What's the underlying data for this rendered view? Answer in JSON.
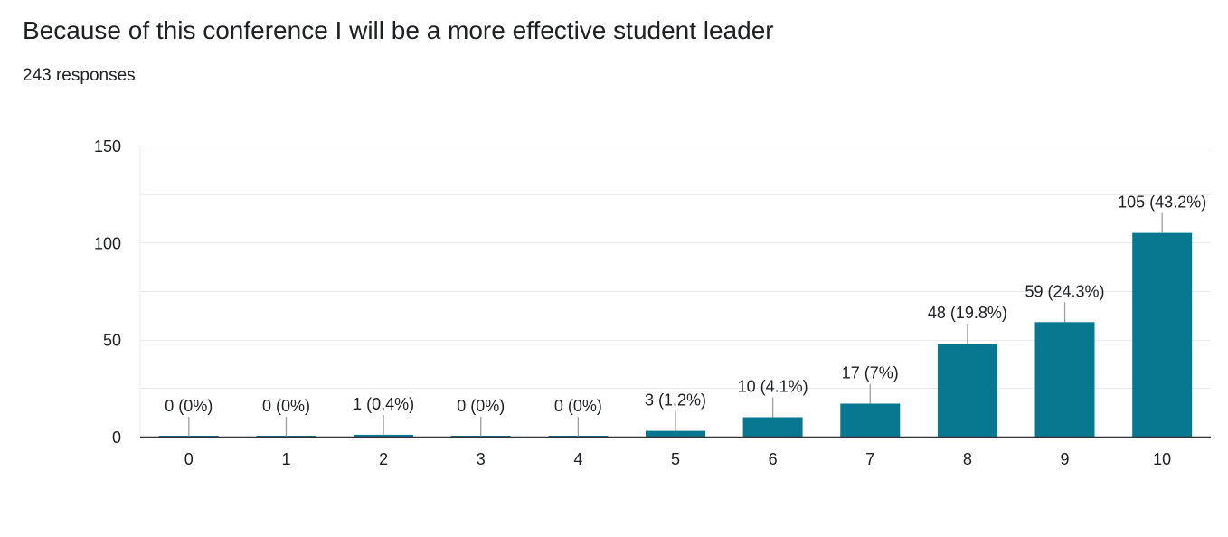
{
  "header": {
    "title": "Because of this conference I will be a more effective student leader",
    "responses": "243 responses"
  },
  "colors": {
    "bar": "#077890",
    "grid": "#ebebeb",
    "axis": "#333333",
    "leader": "#9e9e9e"
  },
  "chart_data": {
    "type": "bar",
    "title": "Because of this conference I will be a more effective student leader",
    "subtitle": "243 responses",
    "categories": [
      "0",
      "1",
      "2",
      "3",
      "4",
      "5",
      "6",
      "7",
      "8",
      "9",
      "10"
    ],
    "values": [
      0,
      0,
      1,
      0,
      0,
      3,
      10,
      17,
      48,
      59,
      105
    ],
    "data_labels": [
      "0 (0%)",
      "0 (0%)",
      "1 (0.4%)",
      "0 (0%)",
      "0 (0%)",
      "3 (1.2%)",
      "10 (4.1%)",
      "17 (7%)",
      "48 (19.8%)",
      "59 (24.3%)",
      "105 (43.2%)"
    ],
    "yticks": [
      "0",
      "50",
      "100",
      "150"
    ],
    "ylim": [
      0,
      150
    ],
    "grid": true,
    "legend": "none",
    "xlabel": "",
    "ylabel": ""
  }
}
